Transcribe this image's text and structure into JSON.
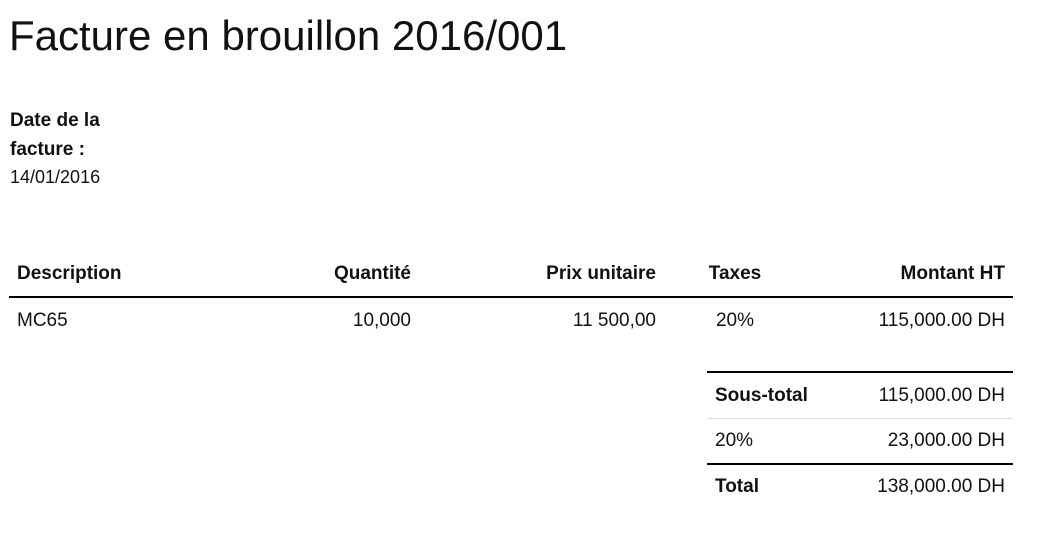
{
  "document": {
    "title": "Facture en brouillon 2016/001",
    "date_label": "Date de la facture :",
    "date_value": "14/01/2016"
  },
  "lines_table": {
    "headers": {
      "description": "Description",
      "quantity": "Quantité",
      "unit_price": "Prix unitaire",
      "taxes": "Taxes",
      "amount": "Montant HT"
    },
    "rows": [
      {
        "description": "MC65",
        "quantity": "10,000",
        "unit_price": "11 500,00",
        "taxes": "20%",
        "amount": "115,000.00 DH"
      }
    ]
  },
  "totals": {
    "subtotal_label": "Sous-total",
    "subtotal_value": "115,000.00 DH",
    "tax_label": "20%",
    "tax_value": "23,000.00 DH",
    "total_label": "Total",
    "total_value": "138,000.00 DH"
  }
}
